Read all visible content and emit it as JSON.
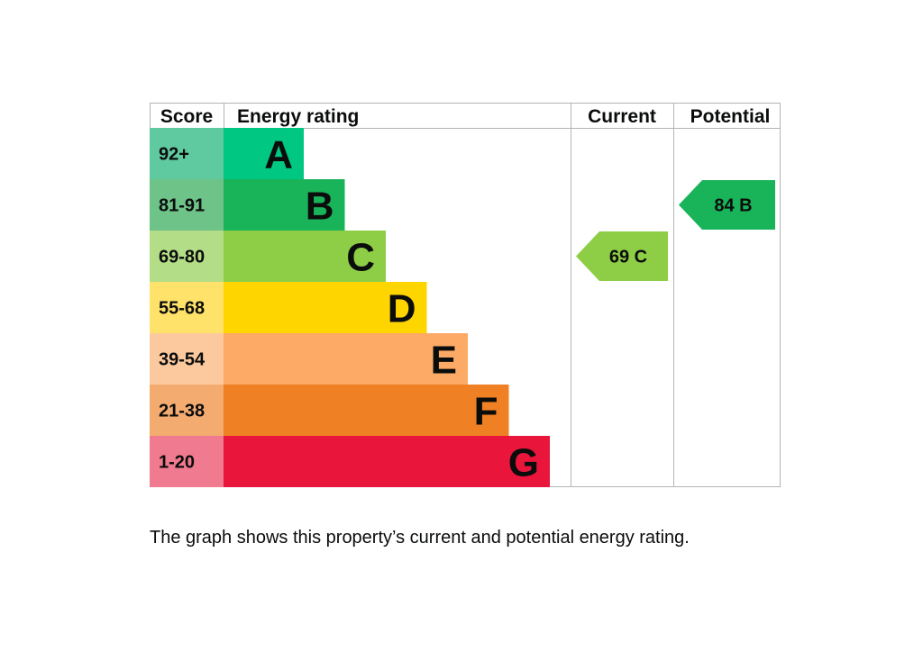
{
  "chart_data": {
    "type": "bar",
    "headers": {
      "score": "Score",
      "rating": "Energy rating",
      "current": "Current",
      "potential": "Potential"
    },
    "bands": [
      {
        "score": "92+",
        "letter": "A",
        "color": "#00c781",
        "score_bg": "#5fc9a0"
      },
      {
        "score": "81-91",
        "letter": "B",
        "color": "#19b459",
        "score_bg": "#6ec389"
      },
      {
        "score": "69-80",
        "letter": "C",
        "color": "#8dce46",
        "score_bg": "#b3dd86"
      },
      {
        "score": "55-68",
        "letter": "D",
        "color": "#ffd500",
        "score_bg": "#ffe26a"
      },
      {
        "score": "39-54",
        "letter": "E",
        "color": "#fcaa65",
        "score_bg": "#fcc99e"
      },
      {
        "score": "21-38",
        "letter": "F",
        "color": "#ef8023",
        "score_bg": "#f3ab70"
      },
      {
        "score": "1-20",
        "letter": "G",
        "color": "#e9153b",
        "score_bg": "#f07a8f"
      }
    ],
    "current": {
      "value": 69,
      "band": "C",
      "label": "69  C",
      "color": "#8dce46"
    },
    "potential": {
      "value": 84,
      "band": "B",
      "label": "84  B",
      "color": "#19b459"
    }
  },
  "caption": "The graph shows this property’s current and potential energy rating."
}
